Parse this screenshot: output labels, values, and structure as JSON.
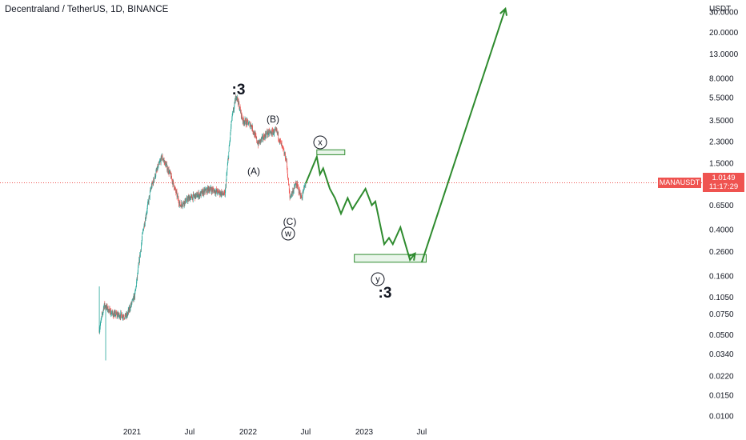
{
  "header": {
    "title": "Decentraland / TetherUS, 1D, BINANCE"
  },
  "price_axis": {
    "unit": "USDT",
    "ticks": [
      "30.0000",
      "20.0000",
      "13.0000",
      "8.0000",
      "5.5000",
      "3.5000",
      "2.3000",
      "1.5000",
      "0.6500",
      "0.4000",
      "0.2600",
      "0.1600",
      "0.1050",
      "0.0750",
      "0.0500",
      "0.0340",
      "0.0220",
      "0.0150",
      "0.0100"
    ]
  },
  "last_price": {
    "symbol": "MANAUSDT",
    "value": "1.0149",
    "countdown": "11:17:29"
  },
  "colors": {
    "up": "#26a69a",
    "down": "#ef5350",
    "projection": "#2e8b2e",
    "price_line": "#ef5350"
  },
  "annotations": {
    "top_count": ":3",
    "bottom_count": ":3",
    "wave_a": "(A)",
    "wave_b": "(B)",
    "wave_c": "(C)",
    "wave_w": "w",
    "wave_x": "x",
    "wave_y": "y"
  },
  "chart_data": {
    "type": "candlestick",
    "title": "Decentraland / TetherUS, 1D, BINANCE",
    "y_scale": "log",
    "y_unit": "USDT",
    "ylim": [
      0.0085,
      38
    ],
    "x_ticks": [
      "2021",
      "Jul",
      "2022",
      "Jul",
      "2023",
      "Jul"
    ],
    "grid": false,
    "last_price": 1.0149,
    "price_path": [
      [
        "2020-09-20",
        0.055
      ],
      [
        "2020-10-05",
        0.09
      ],
      [
        "2020-11-01",
        0.075
      ],
      [
        "2020-12-15",
        0.072
      ],
      [
        "2021-01-10",
        0.11
      ],
      [
        "2021-02-05",
        0.4
      ],
      [
        "2021-03-01",
        0.9
      ],
      [
        "2021-03-20",
        1.3
      ],
      [
        "2021-04-05",
        1.7
      ],
      [
        "2021-05-01",
        1.2
      ],
      [
        "2021-06-01",
        0.65
      ],
      [
        "2021-07-01",
        0.75
      ],
      [
        "2021-08-01",
        0.8
      ],
      [
        "2021-09-01",
        0.9
      ],
      [
        "2021-10-20",
        0.8
      ],
      [
        "2021-11-10",
        3.5
      ],
      [
        "2021-11-25",
        5.8
      ],
      [
        "2021-12-15",
        3.5
      ],
      [
        "2022-01-10",
        3.2
      ],
      [
        "2022-02-01",
        2.2
      ],
      [
        "2022-03-01",
        2.7
      ],
      [
        "2022-04-01",
        2.8
      ],
      [
        "2022-05-01",
        1.6
      ],
      [
        "2022-05-12",
        0.75
      ],
      [
        "2022-06-01",
        1.0
      ],
      [
        "2022-06-18",
        0.75
      ],
      [
        "2022-07-01",
        1.0149
      ]
    ],
    "projection_path": [
      [
        "2022-07-01",
        1.0
      ],
      [
        "2022-08-05",
        1.7
      ],
      [
        "2022-08-15",
        1.2
      ],
      [
        "2022-08-25",
        1.35
      ],
      [
        "2022-09-15",
        0.9
      ],
      [
        "2022-10-01",
        0.75
      ],
      [
        "2022-10-20",
        0.55
      ],
      [
        "2022-11-10",
        0.75
      ],
      [
        "2022-11-25",
        0.6
      ],
      [
        "2023-01-05",
        0.9
      ],
      [
        "2023-01-25",
        0.65
      ],
      [
        "2023-02-05",
        0.7
      ],
      [
        "2023-03-05",
        0.3
      ],
      [
        "2023-03-20",
        0.34
      ],
      [
        "2023-04-01",
        0.3
      ],
      [
        "2023-04-25",
        0.42
      ],
      [
        "2023-05-25",
        0.22
      ],
      [
        "2023-06-10",
        0.25
      ]
    ],
    "final_target_path": [
      [
        "2023-07-01",
        0.21
      ],
      [
        "2024-03-20",
        32
      ]
    ],
    "target_zones": [
      {
        "from": "2022-08-05",
        "to": "2022-11-01",
        "low": 1.77,
        "high": 1.95
      },
      {
        "from": "2022-12-01",
        "to": "2023-07-15",
        "low": 0.21,
        "high": 0.245
      }
    ]
  }
}
